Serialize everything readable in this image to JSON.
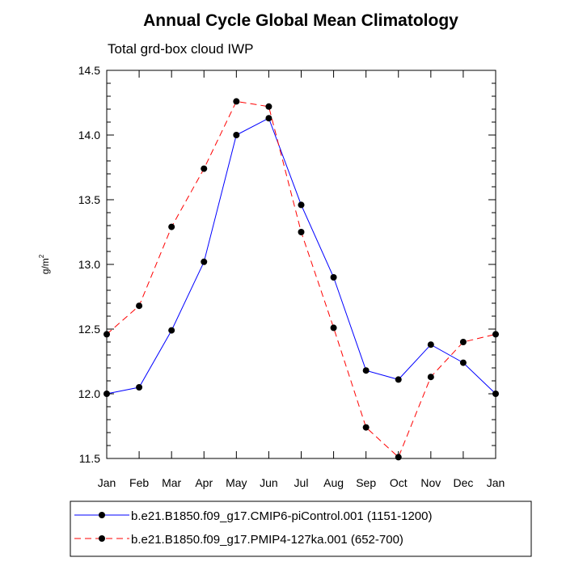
{
  "chart_data": {
    "type": "line",
    "title": "Annual Cycle Global Mean Climatology",
    "subtitle": "Total grd-box cloud IWP",
    "ylabel": "g/m",
    "ylabel_superscript": "2",
    "xlabel": "",
    "categories": [
      "Jan",
      "Feb",
      "Mar",
      "Apr",
      "May",
      "Jun",
      "Jul",
      "Aug",
      "Sep",
      "Oct",
      "Nov",
      "Dec",
      "Jan"
    ],
    "ylim": [
      11.5,
      14.5
    ],
    "yticks": [
      11.5,
      12.0,
      12.5,
      13.0,
      13.5,
      14.0,
      14.5
    ],
    "ytick_labels": [
      "11.5",
      "12.0",
      "12.5",
      "13.0",
      "13.5",
      "14.0",
      "14.5"
    ],
    "legend_position": "bottom",
    "series": [
      {
        "name": "b.e21.B1850.f09_g17.CMIP6-piControl.001 (1151-1200)",
        "color": "#0000ff",
        "dash": "solid",
        "values": [
          12.0,
          12.05,
          12.49,
          13.02,
          14.0,
          14.13,
          13.46,
          12.9,
          12.18,
          12.11,
          12.38,
          12.24,
          12.0
        ]
      },
      {
        "name": "b.e21.B1850.f09_g17.PMIP4-127ka.001 (652-700)",
        "color": "#ff0000",
        "dash": "dashed",
        "values": [
          12.46,
          12.68,
          13.29,
          13.74,
          14.26,
          14.22,
          13.25,
          12.51,
          11.74,
          11.51,
          12.13,
          12.4,
          12.46
        ]
      }
    ]
  }
}
